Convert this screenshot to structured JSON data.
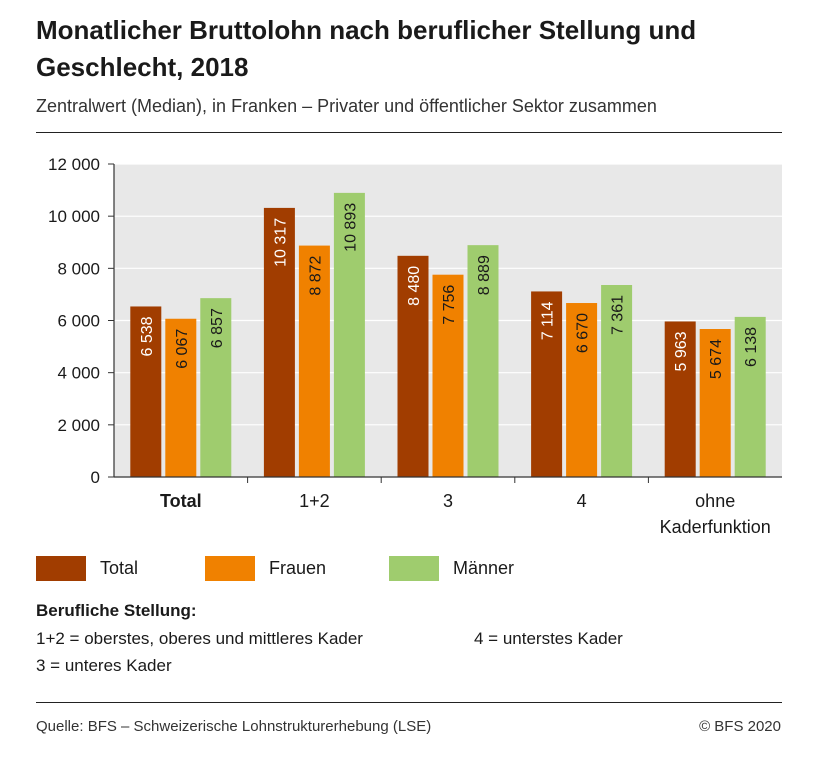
{
  "header": {
    "title": "Monatlicher Bruttolohn nach beruflicher Stellung und Geschlecht, 2018",
    "subtitle": "Zentralwert (Median), in Franken – Privater und öffentlicher Sektor zusammen"
  },
  "chart_data": {
    "type": "bar",
    "categories": [
      "Total",
      "1+2",
      "3",
      "4",
      "ohne Kaderfunktion"
    ],
    "category_labels": [
      [
        "Total"
      ],
      [
        "1+2"
      ],
      [
        "3"
      ],
      [
        "4"
      ],
      [
        "ohne",
        "Kaderfunktion"
      ]
    ],
    "bold_categories": [
      "Total"
    ],
    "series": [
      {
        "name": "Total",
        "color": "#a13d00",
        "values": [
          6538,
          10317,
          8480,
          7114,
          5963
        ],
        "labels": [
          "6 538",
          "10 317",
          "8 480",
          "7 114",
          "5 963"
        ]
      },
      {
        "name": "Frauen",
        "color": "#f08100",
        "values": [
          6067,
          8872,
          7756,
          6670,
          5674
        ],
        "labels": [
          "6 067",
          "8 872",
          "7 756",
          "6 670",
          "5 674"
        ]
      },
      {
        "name": "Männer",
        "color": "#9fcc6e",
        "values": [
          6857,
          10893,
          8889,
          7361,
          6138
        ],
        "labels": [
          "6 857",
          "10 893",
          "8 889",
          "7 361",
          "6 138"
        ]
      }
    ],
    "ylim": [
      0,
      12000
    ],
    "yticks": [
      0,
      2000,
      4000,
      6000,
      8000,
      10000,
      12000
    ],
    "ytick_labels": [
      "0",
      "2 000",
      "4 000",
      "6 000",
      "8 000",
      "10 000",
      "12 000"
    ],
    "grid": true,
    "plot_background": "#e8e8e8",
    "legend_position": "bottom"
  },
  "notes": {
    "title": "Berufliche Stellung:",
    "line1": "1+2 = oberstes, oberes und mittleres Kader",
    "line2": "4 = unterstes Kader",
    "line3": "3 = unteres Kader"
  },
  "footer": {
    "source": "Quelle: BFS – Schweizerische Lohnstrukturerhebung (LSE)",
    "copyright": "© BFS 2020"
  }
}
